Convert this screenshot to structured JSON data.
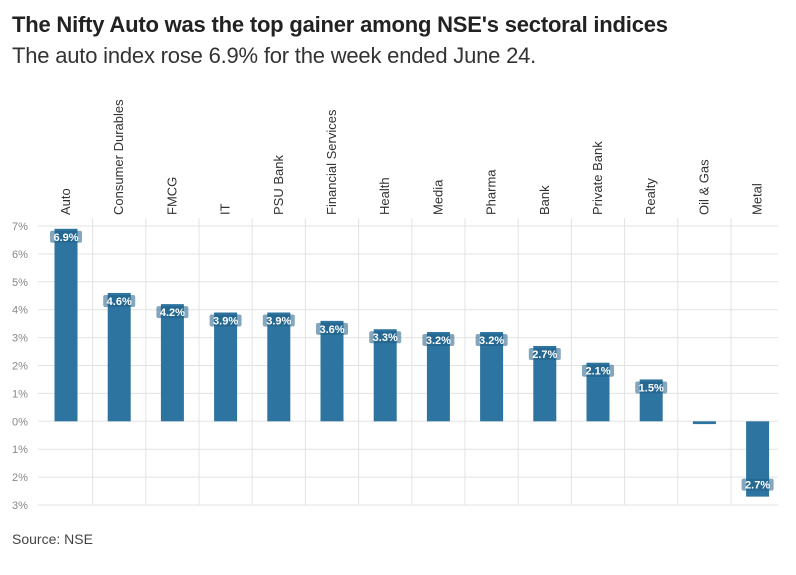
{
  "title": "The Nifty Auto was the top gainer among NSE's sectoral indices",
  "subtitle": "The auto index rose 6.9% for the week ended June 24.",
  "source": "Source: NSE",
  "colors": {
    "bar": "#2e74a0",
    "grid": "#e3e3e3",
    "label_bg": "#1f5f86"
  },
  "chart_data": {
    "type": "bar",
    "categories": [
      "Auto",
      "Consumer Durables",
      "FMCG",
      "IT",
      "PSU Bank",
      "Financial Services",
      "Health",
      "Media",
      "Pharma",
      "Bank",
      "Private Bank",
      "Realty",
      "Oil & Gas",
      "Metal"
    ],
    "values": [
      6.9,
      4.6,
      4.2,
      3.9,
      3.9,
      3.6,
      3.3,
      3.2,
      3.2,
      2.7,
      2.1,
      1.5,
      -0.1,
      -2.7
    ],
    "data_labels": [
      "6.9%",
      "4.6%",
      "4.2%",
      "3.9%",
      "3.9%",
      "3.6%",
      "3.3%",
      "3.2%",
      "3.2%",
      "2.7%",
      "2.1%",
      "1.5%",
      "",
      "2.7%"
    ],
    "y_ticks": [
      7,
      6,
      5,
      4,
      3,
      2,
      1,
      0,
      -1,
      -2,
      -3
    ],
    "y_tick_labels": [
      "7%",
      "6%",
      "5%",
      "4%",
      "3%",
      "2%",
      "1%",
      "0%",
      "1%",
      "2%",
      "3%"
    ],
    "ylim": [
      -3,
      7
    ],
    "grid": true,
    "xlabel": "",
    "ylabel": ""
  }
}
